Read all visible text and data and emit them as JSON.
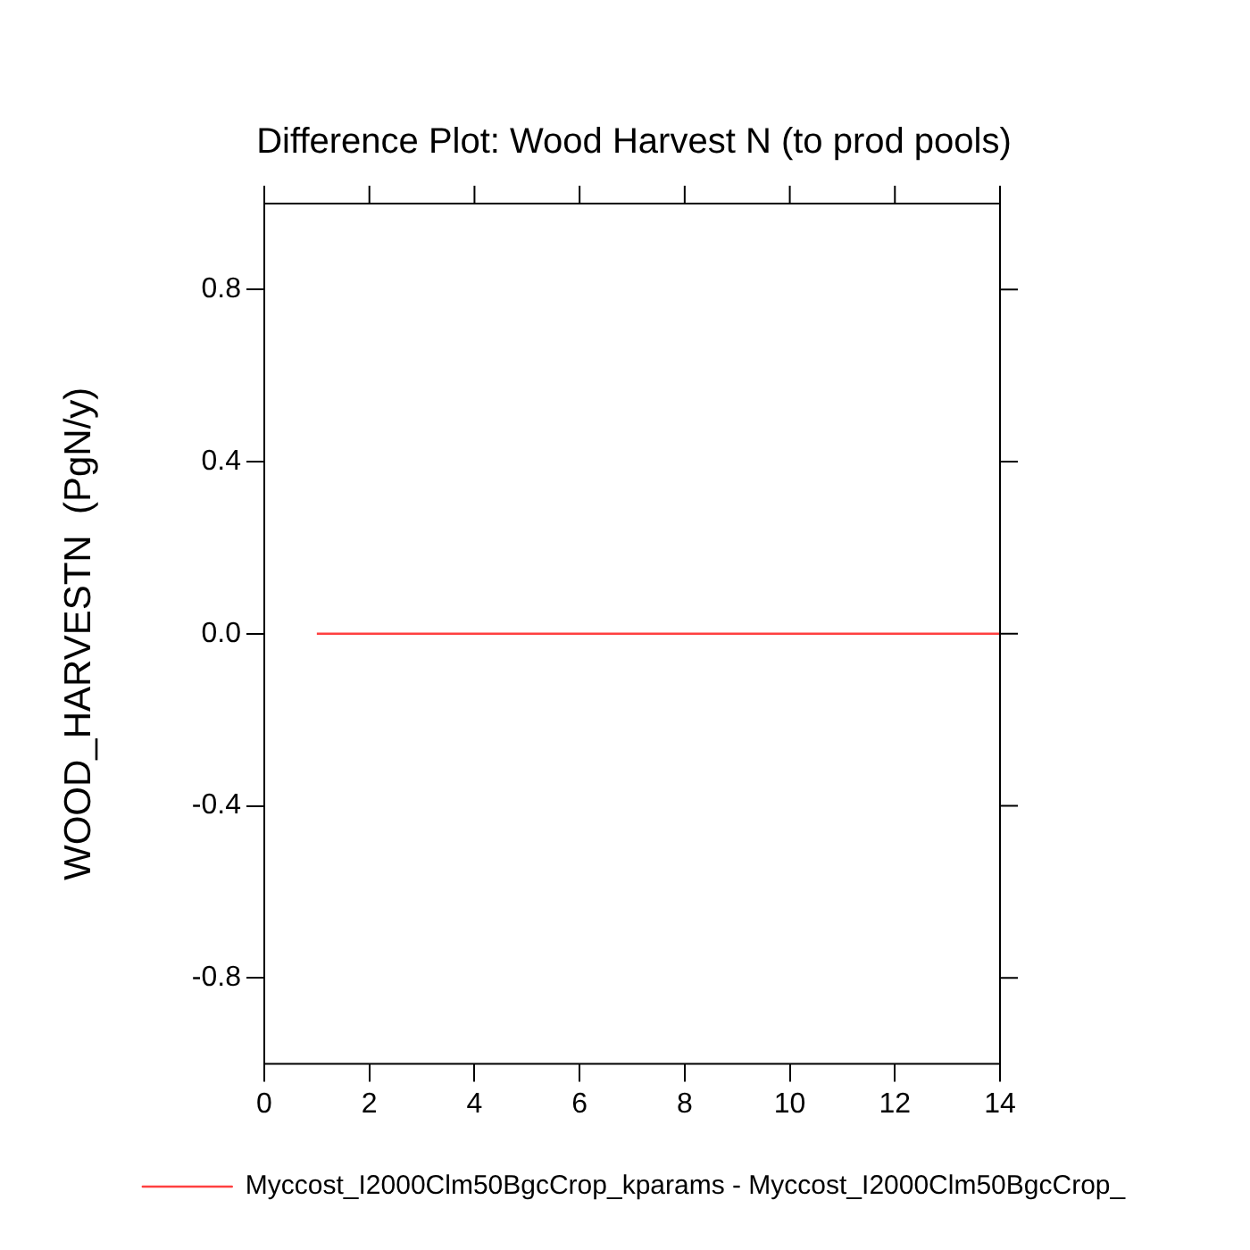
{
  "chart_data": {
    "type": "line",
    "title": "Difference Plot: Wood Harvest N (to prod pools)",
    "ylabel": "WOOD_HARVESTN  (PgN/y)",
    "xlim": [
      0,
      14
    ],
    "xticks": [
      0,
      2,
      4,
      6,
      8,
      10,
      12,
      14
    ],
    "ylim": [
      -1,
      1
    ],
    "yticks": [
      -0.8,
      -0.4,
      {
        "value": 0,
        "label": "0.0"
      },
      0.4,
      0.8
    ],
    "grid": false,
    "legend": "bottom",
    "marker": "none",
    "line_style": "solid",
    "series": [
      {
        "name": "Myccost_I2000Clm50BgcCrop_kparams - Myccost_I2000Clm50BgcCrop_",
        "color": "#ff4040",
        "x": [
          1,
          14
        ],
        "values": [
          0,
          0
        ]
      }
    ]
  }
}
